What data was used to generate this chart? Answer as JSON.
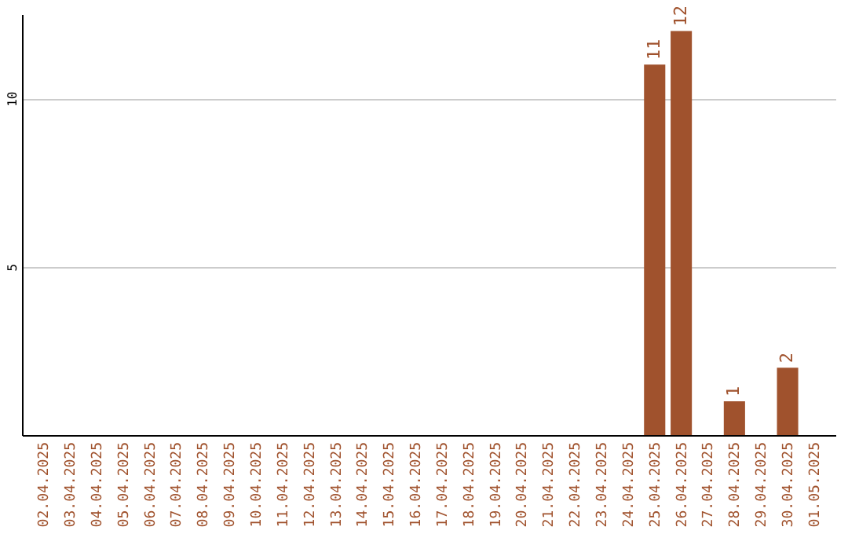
{
  "chart_data": {
    "type": "bar",
    "categories": [
      "02.04.2025",
      "03.04.2025",
      "04.04.2025",
      "05.04.2025",
      "06.04.2025",
      "07.04.2025",
      "08.04.2025",
      "09.04.2025",
      "10.04.2025",
      "11.04.2025",
      "12.04.2025",
      "13.04.2025",
      "14.04.2025",
      "15.04.2025",
      "16.04.2025",
      "17.04.2025",
      "18.04.2025",
      "19.04.2025",
      "20.04.2025",
      "21.04.2025",
      "22.04.2025",
      "23.04.2025",
      "24.04.2025",
      "25.04.2025",
      "26.04.2025",
      "27.04.2025",
      "28.04.2025",
      "29.04.2025",
      "30.04.2025",
      "01.05.2025"
    ],
    "values": [
      0,
      0,
      0,
      0,
      0,
      0,
      0,
      0,
      0,
      0,
      0,
      0,
      0,
      0,
      0,
      0,
      0,
      0,
      0,
      0,
      0,
      0,
      0,
      11,
      12,
      0,
      1,
      0,
      2,
      0
    ],
    "value_labels": [
      null,
      null,
      null,
      null,
      null,
      null,
      null,
      null,
      null,
      null,
      null,
      null,
      null,
      null,
      null,
      null,
      null,
      null,
      null,
      null,
      null,
      null,
      null,
      "11",
      "12",
      null,
      "1",
      null,
      "2",
      null
    ],
    "color": "#a0522d",
    "ylim": [
      0,
      12.5
    ],
    "yticks": [
      5,
      10
    ],
    "grid": "y"
  }
}
